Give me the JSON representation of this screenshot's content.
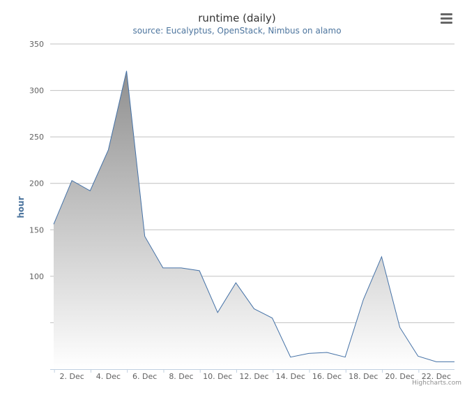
{
  "chart_data": {
    "type": "area",
    "title": "runtime (daily)",
    "subtitle": "source: Eucalyptus, OpenStack, Nimbus on alamo",
    "ylabel": "hour",
    "ylim": [
      0,
      350
    ],
    "y_ticks": [
      50,
      100,
      150,
      200,
      250,
      300,
      350
    ],
    "y_tick_labels": [
      "",
      "100",
      "150",
      "200",
      "250",
      "300",
      "350"
    ],
    "x_tick_labels": [
      "2. Dec",
      "4. Dec",
      "6. Dec",
      "8. Dec",
      "10. Dec",
      "12. Dec",
      "14. Dec",
      "16. Dec",
      "18. Dec",
      "20. Dec",
      "22. Dec"
    ],
    "x": [
      "1. Dec",
      "2. Dec",
      "3. Dec",
      "4. Dec",
      "5. Dec",
      "6. Dec",
      "7. Dec",
      "8. Dec",
      "9. Dec",
      "10. Dec",
      "11. Dec",
      "12. Dec",
      "13. Dec",
      "14. Dec",
      "15. Dec",
      "16. Dec",
      "17. Dec",
      "18. Dec",
      "19. Dec",
      "20. Dec",
      "21. Dec",
      "22. Dec",
      "23. Dec"
    ],
    "values": [
      156,
      203,
      192,
      236,
      321,
      143,
      109,
      109,
      106,
      61,
      93,
      65,
      55,
      13,
      17,
      18,
      13,
      75,
      121,
      45,
      14,
      8,
      8
    ],
    "grid": true,
    "legend": "none",
    "colors": {
      "line": "#4572a7",
      "fill_top": "#8f8f8f",
      "fill_bottom": "#ffffff",
      "grid": "#c0c0c0",
      "axis": "#c0d0e0"
    }
  },
  "ui": {
    "menu_icon": "hamburger-menu-icon",
    "credits": "Highcharts.com"
  }
}
